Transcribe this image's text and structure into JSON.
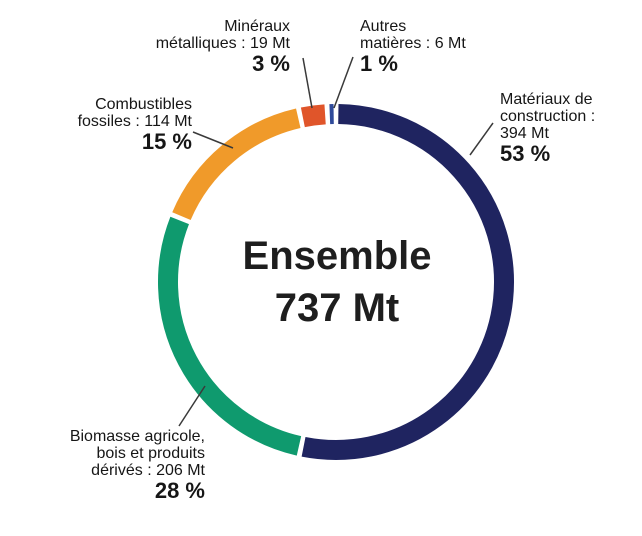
{
  "chart_data": {
    "type": "donut",
    "center_label": "Ensemble",
    "center_value": "737 Mt",
    "slices": [
      {
        "name": "Matériaux de construction",
        "value_text": "394 Mt",
        "value": 394,
        "percent": 53,
        "percent_text": "53 %",
        "color": "#1f2460"
      },
      {
        "name": "Biomasse agricole, bois et produits dérivés",
        "value_text": "206 Mt",
        "value": 206,
        "percent": 28,
        "percent_text": "28 %",
        "color": "#0f9a6e"
      },
      {
        "name": "Combustibles fossiles",
        "value_text": "114 Mt",
        "value": 114,
        "percent": 15,
        "percent_text": "15 %",
        "color": "#f09a2a"
      },
      {
        "name": "Minéraux métalliques",
        "value_text": "19 Mt",
        "value": 19,
        "percent": 3,
        "percent_text": "3 %",
        "color": "#e0552a"
      },
      {
        "name": "Autres matières",
        "value_text": "6 Mt",
        "value": 6,
        "percent": 1,
        "percent_text": "1 %",
        "color": "#2f4a9a"
      }
    ]
  },
  "labels": {
    "construction": {
      "line1": "Matériaux de",
      "line2": "construction :",
      "line3": "394 Mt",
      "pct": "53 %"
    },
    "biomasse": {
      "line1": "Biomasse agricole,",
      "line2": "bois et produits",
      "line3": "dérivés : 206 Mt",
      "pct": "28 %"
    },
    "fossiles": {
      "line1": "Combustibles",
      "line2": "fossiles : 114 Mt",
      "pct": "15 %"
    },
    "mineraux": {
      "line1": "Minéraux",
      "line2": "métalliques : 19 Mt",
      "pct": "3 %"
    },
    "autres": {
      "line1": "Autres",
      "line2": "matières : 6 Mt",
      "pct": "1 %"
    }
  }
}
